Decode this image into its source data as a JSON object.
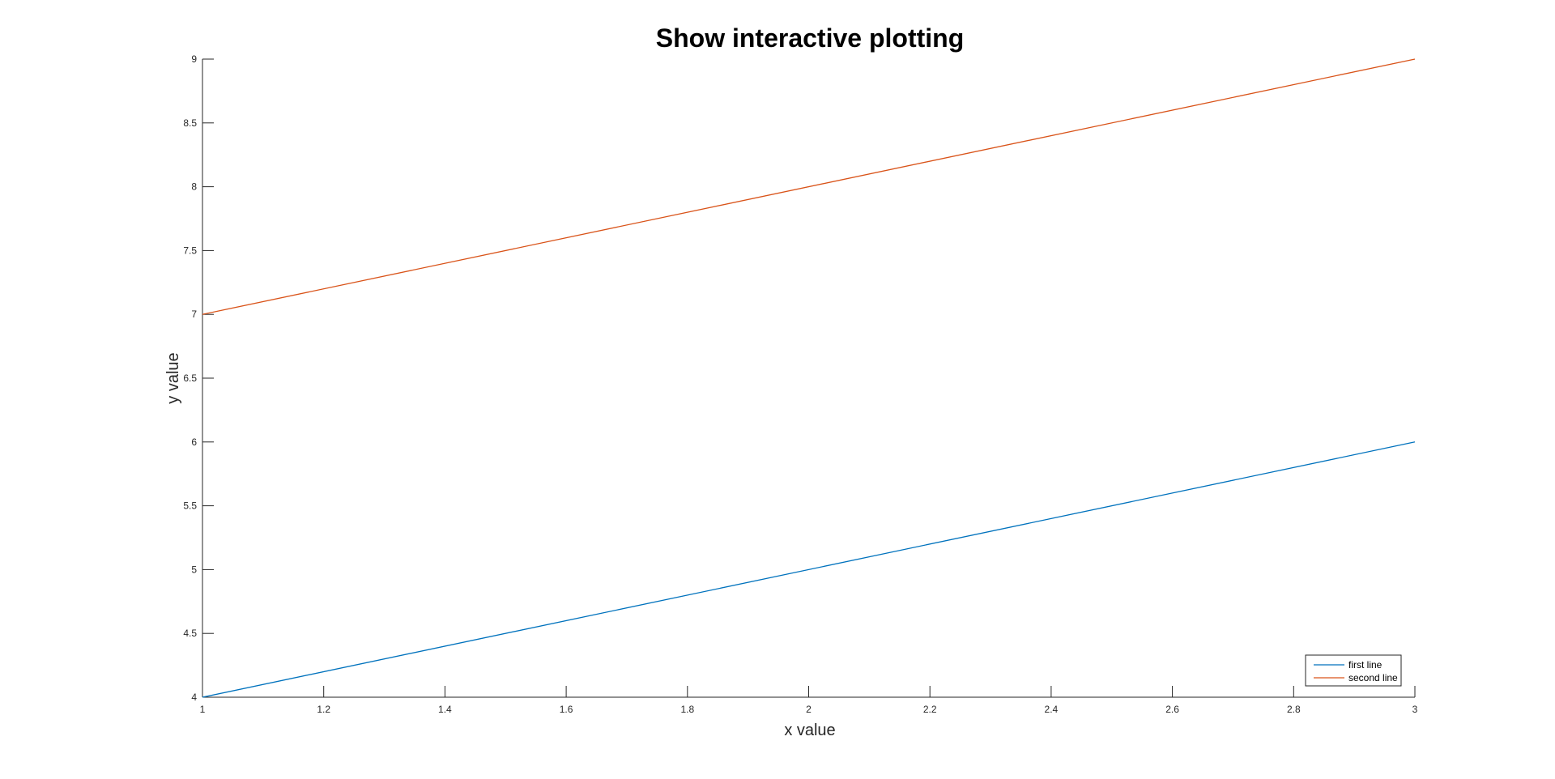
{
  "chart_data": {
    "type": "line",
    "title": "Show interactive plotting",
    "xlabel": "x value",
    "ylabel": "y value",
    "xlim": [
      1,
      3
    ],
    "ylim": [
      4,
      9
    ],
    "grid": false,
    "box": false,
    "x_ticks": [
      1,
      1.2,
      1.4,
      1.6,
      1.8,
      2,
      2.2,
      2.4,
      2.6,
      2.8,
      3
    ],
    "y_ticks": [
      4,
      4.5,
      5,
      5.5,
      6,
      6.5,
      7,
      7.5,
      8,
      8.5,
      9
    ],
    "x": [
      1,
      3
    ],
    "series": [
      {
        "name": "first line",
        "values": [
          4,
          6
        ],
        "color": "#0072BD"
      },
      {
        "name": "second line",
        "values": [
          7,
          9
        ],
        "color": "#D95319"
      }
    ],
    "legend_location": "bottom-right"
  },
  "colors": {
    "axis": "#262626",
    "background": "#ffffff"
  }
}
